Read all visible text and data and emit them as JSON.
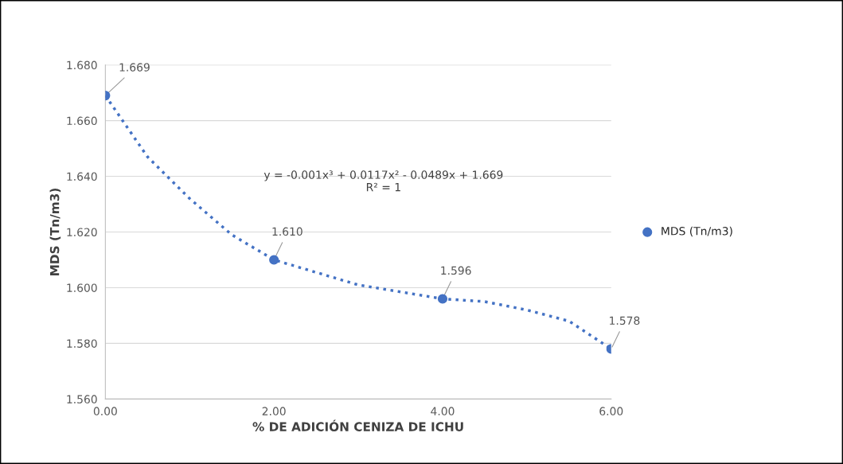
{
  "chart_data": {
    "type": "scatter",
    "xlabel": "% DE ADICIÓN CENIZA DE ICHU",
    "ylabel": "MDS (Tn/m3)",
    "xlim": [
      0,
      6
    ],
    "xticks": [
      {
        "value": 0,
        "label": "0.00"
      },
      {
        "value": 2,
        "label": "2.00"
      },
      {
        "value": 4,
        "label": "4.00"
      },
      {
        "value": 6,
        "label": "6.00"
      }
    ],
    "ylim": [
      1.56,
      1.68
    ],
    "yticks": [
      {
        "value": 1.56,
        "label": "1.560"
      },
      {
        "value": 1.58,
        "label": "1.580"
      },
      {
        "value": 1.6,
        "label": "1.600"
      },
      {
        "value": 1.62,
        "label": "1.620"
      },
      {
        "value": 1.64,
        "label": "1.640"
      },
      {
        "value": 1.66,
        "label": "1.660"
      },
      {
        "value": 1.68,
        "label": "1.680"
      }
    ],
    "grid": "y",
    "legend": "right",
    "series": [
      {
        "name": "MDS (Tn/m3)",
        "color": "#4472c4",
        "marker": "circle",
        "x": [
          0,
          2,
          4,
          6
        ],
        "values": [
          1.669,
          1.61,
          1.596,
          1.578
        ],
        "value_labels": [
          "1.669",
          "1.610",
          "1.596",
          "1.578"
        ]
      },
      {
        "type": "line",
        "color": "#4472c4",
        "marker": "none",
        "line_style": "dotted",
        "x": [
          0,
          0.5,
          1,
          1.5,
          2,
          3,
          4,
          4.5,
          5,
          5.5,
          6
        ],
        "values": [
          1.669,
          1.647,
          1.632,
          1.619,
          1.61,
          1.601,
          1.596,
          1.595,
          1.592,
          1.588,
          1.578
        ]
      }
    ],
    "annotations": [
      "y = -0.001x³ + 0.0117x² - 0.0489x + 1.669\nR² = 1"
    ]
  }
}
